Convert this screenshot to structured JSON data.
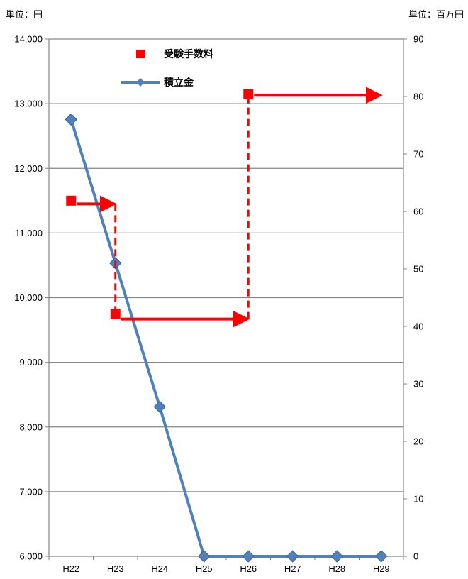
{
  "units": {
    "left": "単位：円",
    "right": "単位：百万円"
  },
  "chart_data": {
    "type": "line",
    "categories": [
      "H22",
      "H23",
      "H24",
      "H25",
      "H26",
      "H27",
      "H28",
      "H29"
    ],
    "y_left": {
      "ticks": [
        "6,000",
        "7,000",
        "8,000",
        "9,000",
        "10,000",
        "11,000",
        "12,000",
        "13,000",
        "14,000"
      ],
      "ylim": [
        6000,
        14000
      ]
    },
    "y_right": {
      "ticks": [
        "0",
        "10",
        "20",
        "30",
        "40",
        "50",
        "60",
        "70",
        "80",
        "90"
      ],
      "ylim": [
        0,
        90
      ]
    },
    "grid": true,
    "legend_placement": "top-center",
    "series": [
      {
        "name": "受験手数料",
        "axis": "left",
        "marker": "square",
        "color": "#ff0000",
        "x": [
          "H22",
          "H23",
          "H26"
        ],
        "values": [
          11500,
          9750,
          13150
        ],
        "step_segments": [
          {
            "from": "H22",
            "to": "H23",
            "value": 11450
          },
          {
            "from": "H23",
            "to": "H26",
            "value": 9670
          },
          {
            "from": "H26",
            "to": "H29",
            "value": 13130
          }
        ],
        "drop_lines": [
          {
            "at": "H23",
            "from": 11450,
            "to": 9670
          },
          {
            "at": "H26",
            "from": 9670,
            "to": 13130
          }
        ]
      },
      {
        "name": "積立金",
        "axis": "right",
        "marker": "diamond",
        "color": "#4f81bd",
        "values": [
          76,
          51,
          26,
          0,
          0,
          0,
          0,
          0
        ]
      }
    ]
  }
}
